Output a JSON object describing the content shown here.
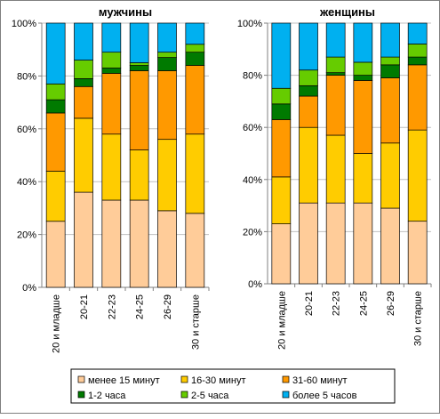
{
  "chart_data": [
    {
      "type": "bar",
      "stacked": true,
      "percent": true,
      "title": "мужчины",
      "categories": [
        "20 и младше",
        "20-21",
        "22-23",
        "24-25",
        "26-29",
        "30 и старше"
      ],
      "y_ticks": [
        "0%",
        "20%",
        "40%",
        "60%",
        "80%",
        "100%"
      ],
      "ylim": [
        0,
        100
      ],
      "series": [
        {
          "name": "менее 15 минут",
          "values": [
            25,
            36,
            33,
            33,
            29,
            28
          ]
        },
        {
          "name": "16-30 минут",
          "values": [
            19,
            28,
            25,
            19,
            27,
            30
          ]
        },
        {
          "name": "31-60 минут",
          "values": [
            22,
            12,
            23,
            30,
            26,
            26
          ]
        },
        {
          "name": "1-2 часа",
          "values": [
            5,
            3,
            2,
            2,
            5,
            5
          ]
        },
        {
          "name": "2-5 часа",
          "values": [
            6,
            7,
            6,
            1,
            2,
            3
          ]
        },
        {
          "name": "более 5 часов",
          "values": [
            23,
            14,
            11,
            15,
            11,
            8
          ]
        }
      ]
    },
    {
      "type": "bar",
      "stacked": true,
      "percent": true,
      "title": "женщины",
      "categories": [
        "20 и младше",
        "20-21",
        "22-23",
        "24-25",
        "26-29",
        "30 и старше"
      ],
      "y_ticks": [
        "0%",
        "20%",
        "40%",
        "60%",
        "80%",
        "100%"
      ],
      "ylim": [
        0,
        100
      ],
      "series": [
        {
          "name": "менее 15 минут",
          "values": [
            23,
            31,
            31,
            31,
            29,
            24
          ]
        },
        {
          "name": "16-30 минут",
          "values": [
            18,
            29,
            26,
            19,
            25,
            35
          ]
        },
        {
          "name": "31-60 минут",
          "values": [
            22,
            12,
            23,
            28,
            25,
            25
          ]
        },
        {
          "name": "1-2 часа",
          "values": [
            6,
            4,
            1,
            2,
            5,
            3
          ]
        },
        {
          "name": "2-5 часа",
          "values": [
            6,
            6,
            6,
            5,
            3,
            5
          ]
        },
        {
          "name": "более 5 часов",
          "values": [
            25,
            18,
            13,
            15,
            13,
            8
          ]
        }
      ]
    }
  ],
  "colors": [
    "#ffcc99",
    "#ffcc00",
    "#ff9900",
    "#007a00",
    "#66cc00",
    "#00b0f0"
  ]
}
